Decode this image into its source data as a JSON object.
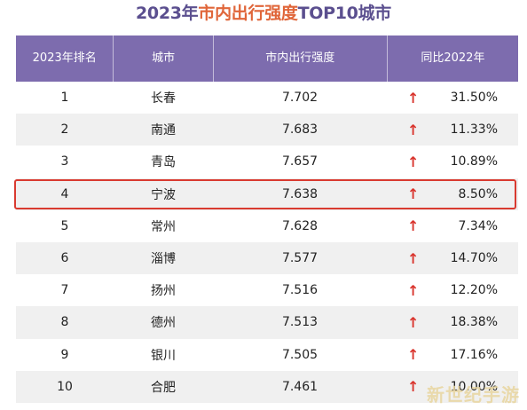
{
  "title": {
    "part_year": "2023年",
    "part_metric": "市内出行强度",
    "part_top": "TOP10城市"
  },
  "table": {
    "headers": [
      "2023年排名",
      "城市",
      "市内出行强度",
      "同比2022年"
    ],
    "rows": [
      {
        "rank": "1",
        "city": "长春",
        "value": "7.702",
        "arrow": "↑",
        "change": "31.50%"
      },
      {
        "rank": "2",
        "city": "南通",
        "value": "7.683",
        "arrow": "↑",
        "change": "11.33%"
      },
      {
        "rank": "3",
        "city": "青岛",
        "value": "7.657",
        "arrow": "↑",
        "change": "10.89%"
      },
      {
        "rank": "4",
        "city": "宁波",
        "value": "7.638",
        "arrow": "↑",
        "change": "8.50%"
      },
      {
        "rank": "5",
        "city": "常州",
        "value": "7.628",
        "arrow": "↑",
        "change": "7.34%"
      },
      {
        "rank": "6",
        "city": "淄博",
        "value": "7.577",
        "arrow": "↑",
        "change": "14.70%"
      },
      {
        "rank": "7",
        "city": "扬州",
        "value": "7.516",
        "arrow": "↑",
        "change": "12.20%"
      },
      {
        "rank": "8",
        "city": "德州",
        "value": "7.513",
        "arrow": "↑",
        "change": "18.38%"
      },
      {
        "rank": "9",
        "city": "银川",
        "value": "7.505",
        "arrow": "↑",
        "change": "17.16%"
      },
      {
        "rank": "10",
        "city": "合肥",
        "value": "7.461",
        "arrow": "↑",
        "change": "10.00%"
      }
    ],
    "highlighted_rank": "4"
  },
  "watermark": "新世纪手游",
  "colors": {
    "header_bg": "#7d6cae",
    "title_purple": "#5b4f8f",
    "title_orange": "#e0663a",
    "arrow_red": "#d9352e",
    "highlight_border": "#d93a30",
    "stripe": "#f0f0f0"
  }
}
